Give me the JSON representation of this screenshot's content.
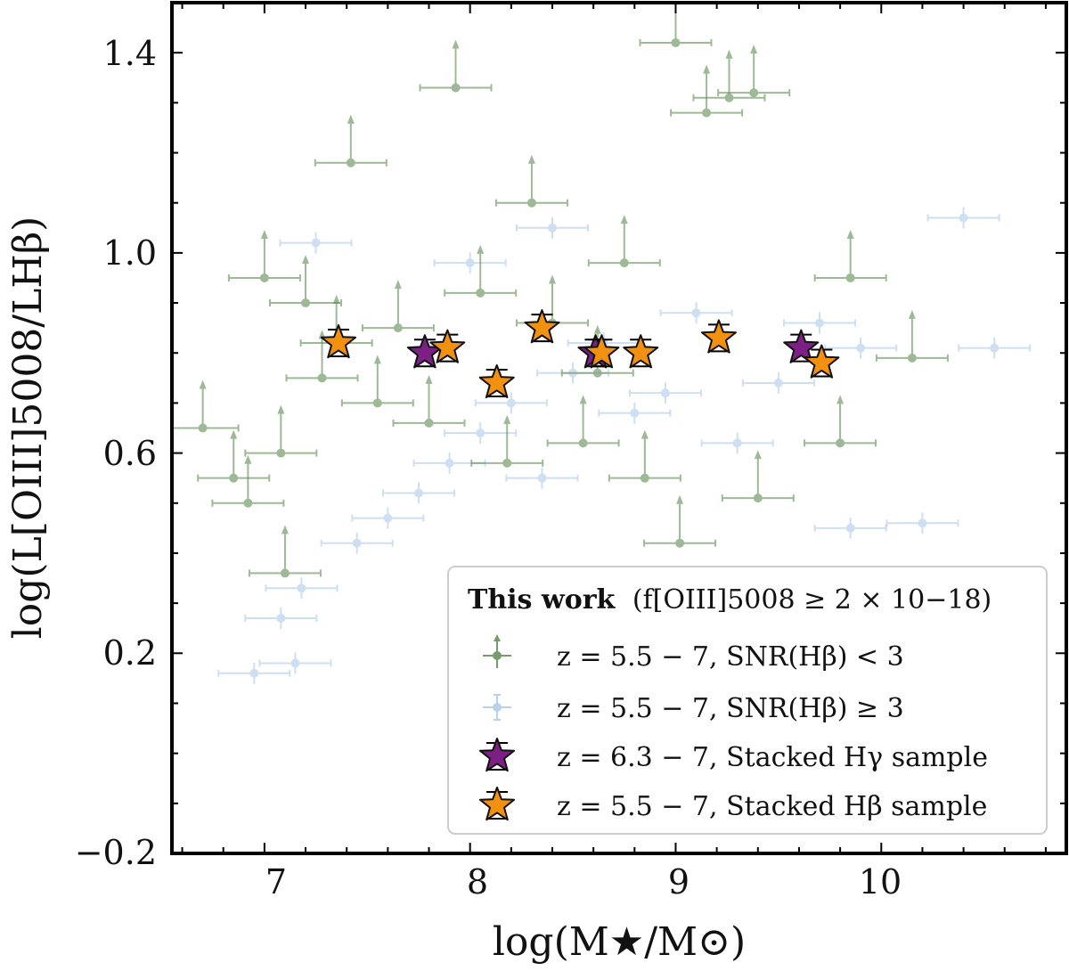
{
  "chart_data": {
    "type": "scatter",
    "xlabel": "log(M★/M⊙)",
    "ylabel": "log(L[OIII]5008/LHβ)",
    "xlim": [
      6.55,
      10.9
    ],
    "ylim": [
      -0.2,
      1.5
    ],
    "x_ticks": [
      "7",
      "8",
      "9",
      "10"
    ],
    "y_ticks": [
      "1.4",
      "1.0",
      "0.6",
      "0.2",
      "−0.2"
    ],
    "grid": false,
    "legend_placement": "bottom-right",
    "legend_title": {
      "bold": "This work",
      "rest": "(f[OIII]5008 ≥ 2 × 10−18)"
    },
    "legend_entries": [
      "z = 5.5 − 7, SNR(Hβ) < 3",
      "z = 5.5 − 7, SNR(Hβ) ≥ 3",
      "z = 6.3 − 7, Stacked Hγ sample",
      "z = 5.5 − 7, Stacked Hβ sample"
    ],
    "colors": {
      "snr_low": "#5e8c52",
      "snr_high": "#a9c6e8",
      "stack_hgamma": "#7e1f86",
      "stack_hbeta": "#f29110"
    },
    "series": [
      {
        "name": "z = 5.5 − 7, SNR(Hβ) < 3",
        "marker": "circle with lower-limit arrow",
        "points": [
          {
            "x": 6.7,
            "y": 0.65
          },
          {
            "x": 6.85,
            "y": 0.55
          },
          {
            "x": 6.92,
            "y": 0.5
          },
          {
            "x": 7.0,
            "y": 0.95
          },
          {
            "x": 7.08,
            "y": 0.6
          },
          {
            "x": 7.1,
            "y": 0.36
          },
          {
            "x": 7.2,
            "y": 0.9
          },
          {
            "x": 7.28,
            "y": 0.75
          },
          {
            "x": 7.35,
            "y": 0.82
          },
          {
            "x": 7.42,
            "y": 1.18
          },
          {
            "x": 7.55,
            "y": 0.7
          },
          {
            "x": 7.65,
            "y": 0.85
          },
          {
            "x": 7.8,
            "y": 0.66
          },
          {
            "x": 7.93,
            "y": 1.33
          },
          {
            "x": 8.05,
            "y": 0.92
          },
          {
            "x": 8.18,
            "y": 0.58
          },
          {
            "x": 8.3,
            "y": 1.1
          },
          {
            "x": 8.4,
            "y": 0.86
          },
          {
            "x": 8.55,
            "y": 0.62
          },
          {
            "x": 8.62,
            "y": 0.76
          },
          {
            "x": 8.75,
            "y": 0.98
          },
          {
            "x": 8.85,
            "y": 0.55
          },
          {
            "x": 9.0,
            "y": 1.42
          },
          {
            "x": 9.02,
            "y": 0.42
          },
          {
            "x": 9.15,
            "y": 1.28
          },
          {
            "x": 9.26,
            "y": 1.31
          },
          {
            "x": 9.38,
            "y": 1.32
          },
          {
            "x": 9.4,
            "y": 0.51
          },
          {
            "x": 9.8,
            "y": 0.62
          },
          {
            "x": 9.85,
            "y": 0.95
          },
          {
            "x": 10.15,
            "y": 0.79
          }
        ]
      },
      {
        "name": "z = 5.5 − 7, SNR(Hβ) ≥ 3",
        "marker": "circle",
        "points": [
          {
            "x": 6.95,
            "y": 0.16
          },
          {
            "x": 7.15,
            "y": 0.18
          },
          {
            "x": 7.08,
            "y": 0.27
          },
          {
            "x": 7.18,
            "y": 0.33
          },
          {
            "x": 7.45,
            "y": 0.42
          },
          {
            "x": 7.6,
            "y": 0.47
          },
          {
            "x": 7.75,
            "y": 0.52
          },
          {
            "x": 7.9,
            "y": 0.58
          },
          {
            "x": 8.05,
            "y": 0.64
          },
          {
            "x": 8.2,
            "y": 0.7
          },
          {
            "x": 8.35,
            "y": 0.55
          },
          {
            "x": 8.5,
            "y": 0.76
          },
          {
            "x": 8.65,
            "y": 0.82
          },
          {
            "x": 8.8,
            "y": 0.68
          },
          {
            "x": 8.95,
            "y": 0.72
          },
          {
            "x": 9.1,
            "y": 0.88
          },
          {
            "x": 9.3,
            "y": 0.62
          },
          {
            "x": 9.5,
            "y": 0.74
          },
          {
            "x": 9.7,
            "y": 0.86
          },
          {
            "x": 9.9,
            "y": 0.81
          },
          {
            "x": 10.2,
            "y": 0.46
          },
          {
            "x": 10.4,
            "y": 1.07
          },
          {
            "x": 10.55,
            "y": 0.81
          },
          {
            "x": 8.0,
            "y": 0.98
          },
          {
            "x": 8.4,
            "y": 1.05
          },
          {
            "x": 7.25,
            "y": 1.02
          },
          {
            "x": 9.85,
            "y": 0.45
          }
        ]
      },
      {
        "name": "z = 6.3 − 7, Stacked Hγ sample",
        "marker": "star",
        "points": [
          {
            "x": 7.78,
            "y": 0.8
          },
          {
            "x": 8.61,
            "y": 0.8
          },
          {
            "x": 9.61,
            "y": 0.81
          }
        ]
      },
      {
        "name": "z = 5.5 − 7, Stacked Hβ sample",
        "marker": "star",
        "points": [
          {
            "x": 7.36,
            "y": 0.82
          },
          {
            "x": 7.89,
            "y": 0.81
          },
          {
            "x": 8.13,
            "y": 0.74
          },
          {
            "x": 8.35,
            "y": 0.85
          },
          {
            "x": 8.64,
            "y": 0.8
          },
          {
            "x": 8.83,
            "y": 0.8
          },
          {
            "x": 9.21,
            "y": 0.83
          },
          {
            "x": 9.71,
            "y": 0.78
          }
        ]
      }
    ]
  }
}
